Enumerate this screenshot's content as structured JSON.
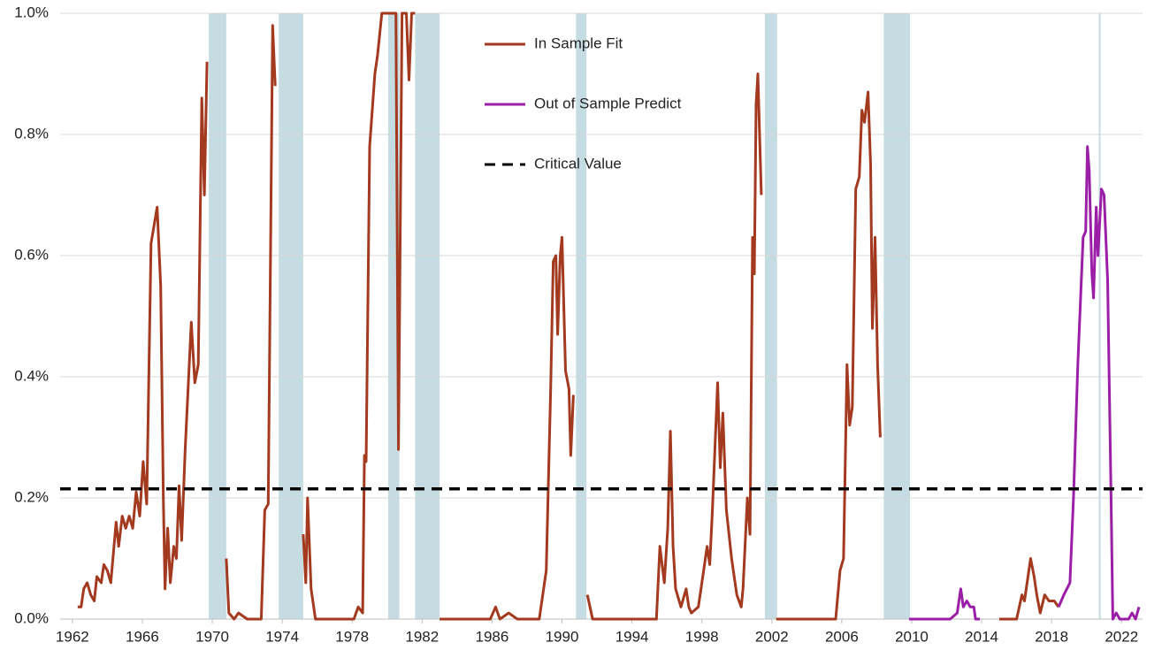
{
  "chart_data": {
    "type": "line",
    "xlim": [
      1961.3,
      2023.2
    ],
    "ylim": [
      0,
      1.0
    ],
    "xticks": [
      1962,
      1966,
      1970,
      1974,
      1978,
      1982,
      1986,
      1990,
      1994,
      1998,
      2002,
      2006,
      2010,
      2014,
      2018,
      2022
    ],
    "yticks": [
      {
        "value": 0,
        "label": "0.0%"
      },
      {
        "value": 0.2,
        "label": "0.2%"
      },
      {
        "value": 0.4,
        "label": "0.4%"
      },
      {
        "value": 0.6,
        "label": "0.6%"
      },
      {
        "value": 0.8,
        "label": "0.8%"
      },
      {
        "value": 1.0,
        "label": "1.0%"
      }
    ],
    "grid": true,
    "legend": "top",
    "shaded": [
      [
        1969.8,
        1970.8
      ],
      [
        1973.8,
        1975.2
      ],
      [
        1980.06,
        1980.7
      ],
      [
        1981.6,
        1983.0
      ],
      [
        1990.8,
        1991.4
      ],
      [
        2001.6,
        2002.3
      ],
      [
        2008.4,
        2009.9
      ],
      [
        2020.7,
        2020.8
      ]
    ],
    "shaded_color": "#c5dce3",
    "series": [
      {
        "name": "In Sample Fit",
        "color": "#a33a1f",
        "x": [
          1962.3,
          1962.5,
          1962.65,
          1962.85,
          1963.05,
          1963.25,
          1963.4,
          1963.65,
          1963.8,
          1964.0,
          1964.2,
          1964.5,
          1964.65,
          1964.85,
          1965.05,
          1965.25,
          1965.45,
          1965.65,
          1965.85,
          1966.05,
          1966.25,
          1966.5,
          1966.85,
          1967.05,
          1967.2,
          1967.3,
          1967.45,
          1967.6,
          1967.8,
          1967.95,
          1968.1,
          1968.25,
          1968.45,
          1968.8,
          1969.0,
          1969.2,
          1969.4,
          1969.55,
          1969.7,
          null,
          1970.8,
          1970.95,
          1971.25,
          1971.5,
          1972.0,
          1972.8,
          1973.0,
          1973.2,
          1973.45,
          1973.6,
          null,
          1975.2,
          1975.35,
          1975.45,
          1975.65,
          1975.9,
          1978.1,
          1978.35,
          1978.6,
          1978.7,
          1978.8,
          1979.0,
          1979.3,
          1979.45,
          1979.7,
          1980.1,
          1980.5,
          1980.65,
          1980.85,
          1981.1,
          1981.25,
          1981.4,
          1981.6,
          null,
          1983.0,
          1985.9,
          1986.2,
          1986.45,
          1986.95,
          1987.45,
          1988.7,
          1989.1,
          1989.35,
          1989.5,
          1989.65,
          1989.75,
          1989.9,
          1990.0,
          1990.2,
          1990.4,
          1990.5,
          1990.65,
          null,
          1991.45,
          1991.75,
          1995.4,
          1995.6,
          1995.85,
          1996.05,
          1996.2,
          1996.35,
          1996.5,
          1996.8,
          1997.1,
          1997.25,
          1997.4,
          1997.8,
          1998.05,
          1998.3,
          1998.45,
          1998.6,
          1998.9,
          1999.05,
          1999.2,
          1999.4,
          1999.7,
          2000.0,
          2000.25,
          2000.35,
          2000.6,
          2000.75,
          2000.9,
          2001.0,
          2001.1,
          2001.2,
          2001.4,
          null,
          2002.25,
          2005.65,
          2005.9,
          2006.1,
          2006.3,
          2006.45,
          2006.6,
          2006.8,
          2007.0,
          2007.15,
          2007.3,
          2007.5,
          2007.65,
          2007.75,
          2007.9,
          2008.05,
          2008.2,
          null,
          2015.0,
          2016.0,
          2016.3,
          2016.45,
          2016.8,
          2017.0,
          2017.15,
          2017.35,
          2017.6,
          2017.85,
          2018.15,
          2018.4
        ],
        "values": [
          0.02,
          0.02,
          0.05,
          0.06,
          0.04,
          0.03,
          0.07,
          0.06,
          0.09,
          0.08,
          0.06,
          0.16,
          0.12,
          0.17,
          0.15,
          0.17,
          0.15,
          0.21,
          0.17,
          0.26,
          0.19,
          0.62,
          0.68,
          0.55,
          0.2,
          0.05,
          0.15,
          0.06,
          0.12,
          0.1,
          0.22,
          0.13,
          0.28,
          0.49,
          0.39,
          0.42,
          0.86,
          0.7,
          0.92,
          null,
          0.1,
          0.01,
          0.0,
          0.01,
          0.0,
          0.0,
          0.18,
          0.19,
          0.98,
          0.88,
          null,
          0.14,
          0.06,
          0.2,
          0.05,
          0.0,
          0.0,
          0.02,
          0.01,
          0.27,
          0.26,
          0.78,
          0.9,
          0.93,
          1.0,
          1.0,
          1.0,
          0.28,
          1.0,
          1.0,
          0.89,
          1.0,
          1.0,
          null,
          0.0,
          0.0,
          0.02,
          0.0,
          0.01,
          0.0,
          0.0,
          0.08,
          0.38,
          0.59,
          0.6,
          0.47,
          0.6,
          0.63,
          0.41,
          0.38,
          0.27,
          0.37,
          null,
          0.04,
          0.0,
          0.0,
          0.12,
          0.06,
          0.15,
          0.31,
          0.12,
          0.05,
          0.02,
          0.05,
          0.02,
          0.01,
          0.02,
          0.07,
          0.12,
          0.09,
          0.18,
          0.39,
          0.25,
          0.34,
          0.18,
          0.1,
          0.04,
          0.02,
          0.05,
          0.2,
          0.14,
          0.63,
          0.57,
          0.85,
          0.9,
          0.7,
          null,
          0.0,
          0.0,
          0.08,
          0.1,
          0.42,
          0.32,
          0.35,
          0.71,
          0.73,
          0.84,
          0.82,
          0.87,
          0.75,
          0.48,
          0.63,
          0.42,
          0.3,
          null,
          0.0,
          0.0,
          0.04,
          0.03,
          0.1,
          0.07,
          0.04,
          0.01,
          0.04,
          0.03,
          0.03,
          0.02
        ]
      },
      {
        "name": "Out of Sample Predict",
        "color": "#9b1fa6",
        "x": [
          2009.85,
          2010.95,
          2012.2,
          2012.6,
          2012.8,
          2012.95,
          2013.15,
          2013.35,
          2013.55,
          2013.65,
          2013.9,
          null,
          2018.4,
          2018.7,
          2019.05,
          2019.25,
          2019.5,
          2019.8,
          2019.95,
          2020.05,
          2020.15,
          2020.3,
          2020.4,
          2020.55,
          2020.65,
          2020.85,
          2021.0,
          2021.2,
          2021.4,
          2021.5,
          2021.7,
          2021.9,
          2022.4,
          2022.6,
          2022.8,
          2023.0
        ],
        "values": [
          0.0,
          0.0,
          0.0,
          0.01,
          0.05,
          0.02,
          0.03,
          0.02,
          0.02,
          0.0,
          0.0,
          null,
          0.02,
          0.04,
          0.06,
          0.2,
          0.42,
          0.63,
          0.64,
          0.78,
          0.74,
          0.57,
          0.53,
          0.68,
          0.6,
          0.71,
          0.7,
          0.56,
          0.2,
          0.0,
          0.01,
          0.0,
          0.0,
          0.01,
          0.0,
          0.02
        ]
      },
      {
        "name": "Critical Value",
        "color": "#000000",
        "dashed": true,
        "x": [
          1961.3,
          2023.2
        ],
        "values": [
          0.215,
          0.215
        ]
      }
    ]
  }
}
